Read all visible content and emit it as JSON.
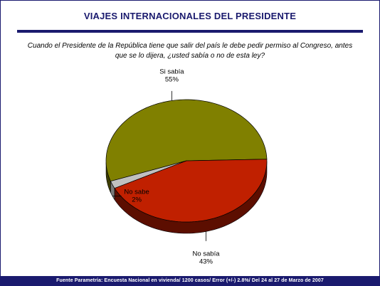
{
  "header": {
    "title": "VIAJES INTERNACIONALES DEL PRESIDENTE",
    "question": "Cuando el Presidente de la República tiene que salir del país le debe pedir permiso al Congreso, antes que se lo dijera, ¿usted sabía o no de esta ley?"
  },
  "chart_data": {
    "type": "pie",
    "title": "VIAJES INTERNACIONALES DEL PRESIDENTE",
    "three_d": true,
    "slices": [
      {
        "label": "Si sabía",
        "value": 55,
        "value_label": "55%",
        "color": "#808000",
        "side_color": "#3d3d00"
      },
      {
        "label": "No sabe",
        "value": 2,
        "value_label": "2%",
        "color": "#c0c0c0",
        "side_color": "#7a7a7a"
      },
      {
        "label": "No sabía",
        "value": 43,
        "value_label": "43%",
        "color": "#c02000",
        "side_color": "#5c0e00"
      }
    ]
  },
  "footer": {
    "source": "Fuente Parametría: Encuesta Nacional en vivienda/ 1200 casos/ Error (+/-) 2.8%/ Del 24 al 27 de Marzo de 2007"
  }
}
